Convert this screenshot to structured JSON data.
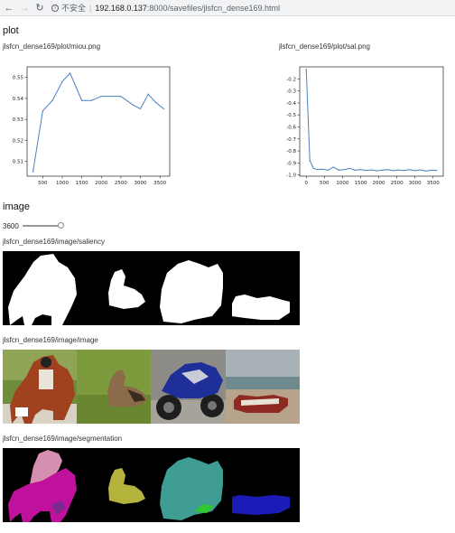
{
  "browser": {
    "security_label": "不安全",
    "url_host": "192.168.0.137",
    "url_rest": ":8000/savefiles/jlsfcn_dense169.html"
  },
  "plot_section": {
    "heading": "plot",
    "plots": [
      {
        "caption": "jlsfcn_dense169/plot/miou.png"
      },
      {
        "caption": "jlsfcn_dense169/plot/sal.png"
      }
    ]
  },
  "image_section": {
    "heading": "image",
    "slider_value": "3600",
    "slider_fraction": 1.0,
    "strips": [
      {
        "caption": "jlsfcn_dense169/image/saliency"
      },
      {
        "caption": "jlsfcn_dense169/image/image"
      },
      {
        "caption": "jlsfcn_dense169/image/segmentation"
      }
    ]
  },
  "chart_data": [
    {
      "type": "line",
      "x": [
        250,
        500,
        750,
        1000,
        1200,
        1500,
        1750,
        2000,
        2300,
        2500,
        2800,
        3000,
        3200,
        3400,
        3600
      ],
      "y": [
        0.505,
        0.534,
        0.539,
        0.548,
        0.552,
        0.539,
        0.539,
        0.541,
        0.541,
        0.541,
        0.537,
        0.535,
        0.542,
        0.538,
        0.535
      ],
      "xticks": [
        "500",
        "1000",
        "1500",
        "2000",
        "2500",
        "3000",
        "3500"
      ],
      "yticks": [
        "0.51",
        "0.52",
        "0.53",
        "0.54",
        "0.55"
      ],
      "xlim": [
        100,
        3750
      ],
      "ylim": [
        0.503,
        0.555
      ],
      "color": "#4a7fbe"
    },
    {
      "type": "line",
      "x": [
        0,
        100,
        200,
        300,
        450,
        600,
        750,
        900,
        1050,
        1200,
        1350,
        1500,
        1650,
        1800,
        1950,
        2100,
        2250,
        2400,
        2550,
        2700,
        2850,
        3000,
        3150,
        3300,
        3450,
        3600
      ],
      "y": [
        -0.12,
        -0.88,
        -0.945,
        -0.955,
        -0.952,
        -0.96,
        -0.935,
        -0.96,
        -0.955,
        -0.945,
        -0.96,
        -0.955,
        -0.962,
        -0.958,
        -0.965,
        -0.96,
        -0.955,
        -0.965,
        -0.958,
        -0.963,
        -0.955,
        -0.965,
        -0.957,
        -0.968,
        -0.96,
        -0.962
      ],
      "xticks": [
        "0",
        "500",
        "1000",
        "1500",
        "2000",
        "2500",
        "3000",
        "3500"
      ],
      "yticks": [
        "-0.2",
        "-0.3",
        "-0.4",
        "-0.5",
        "-0.6",
        "-0.7",
        "-0.8",
        "-0.9",
        "-1.0"
      ],
      "xlim": [
        -180,
        3780
      ],
      "ylim": [
        -1.01,
        -0.1
      ],
      "color": "#4a7fbe"
    }
  ],
  "colors": {
    "seg_pink": "#d58fb0",
    "seg_magenta": "#c0119c",
    "seg_purple": "#7a2a8c",
    "seg_olive": "#b4b33c",
    "seg_teal": "#3f9d93",
    "seg_green": "#2fc92f",
    "seg_blue": "#1b1cb8"
  }
}
